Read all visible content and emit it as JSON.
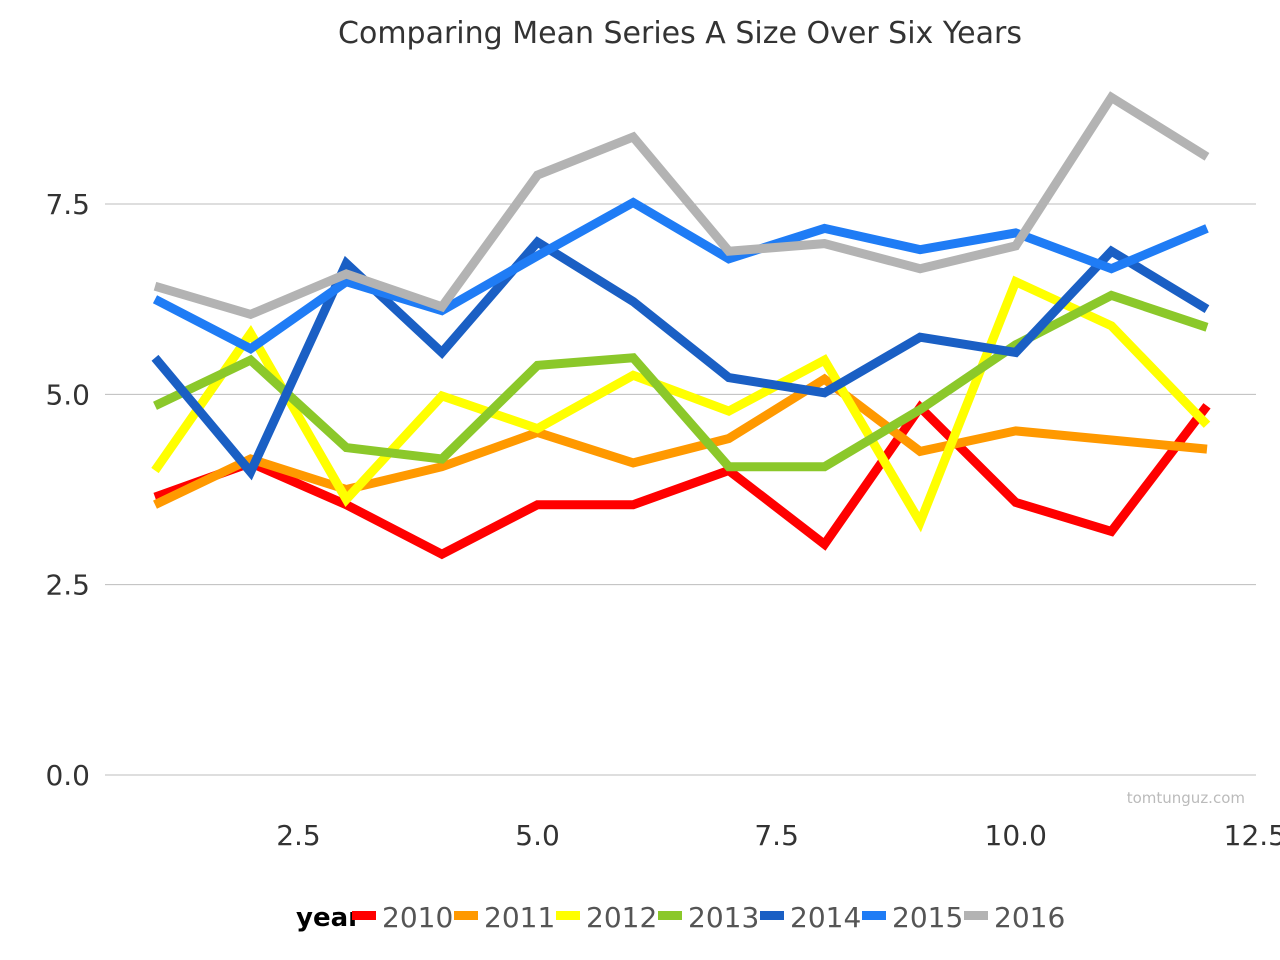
{
  "watermark": "tomtunguz.com",
  "chart_data": {
    "type": "line",
    "title": "Comparing Mean Series A Size Over Six Years",
    "xlabel": "",
    "ylabel": "",
    "xlim": [
      0.5,
      12.5
    ],
    "ylim": [
      0,
      9
    ],
    "x_ticks": [
      2.5,
      5.0,
      7.5,
      10.0,
      12.5
    ],
    "y_ticks": [
      0.0,
      2.5,
      5.0,
      7.5
    ],
    "x_tick_labels": [
      "2.5",
      "5.0",
      "7.5",
      "10.0",
      "12.5"
    ],
    "y_tick_labels": [
      "0.0",
      "2.5",
      "5.0",
      "7.5"
    ],
    "grid": "horizontal",
    "legend_position": "bottom",
    "legend_title": "year",
    "x": [
      1,
      2,
      3,
      4,
      5,
      6,
      7,
      8,
      9,
      10,
      11,
      12
    ],
    "series": [
      {
        "name": "2010",
        "color": "#ff0000",
        "values": [
          3.65,
          4.1,
          3.55,
          2.9,
          3.55,
          3.55,
          4.0,
          3.03,
          4.83,
          3.58,
          3.2,
          4.85
        ]
      },
      {
        "name": "2011",
        "color": "#ff9900",
        "values": [
          3.55,
          4.15,
          3.75,
          4.05,
          4.5,
          4.1,
          4.42,
          5.2,
          4.25,
          4.52,
          4.4,
          4.28
        ]
      },
      {
        "name": "2012",
        "color": "#ffff00",
        "values": [
          4.0,
          5.8,
          3.62,
          4.98,
          4.55,
          5.25,
          4.78,
          5.45,
          3.32,
          6.48,
          5.9,
          4.6
        ]
      },
      {
        "name": "2013",
        "color": "#8bc82a",
        "values": [
          4.85,
          5.45,
          4.3,
          4.15,
          5.38,
          5.48,
          4.05,
          4.05,
          4.8,
          5.65,
          6.3,
          5.88
        ]
      },
      {
        "name": "2014",
        "color": "#1a5fc4",
        "values": [
          5.48,
          3.98,
          6.72,
          5.55,
          7.0,
          6.22,
          5.22,
          5.02,
          5.75,
          5.55,
          6.88,
          6.12
        ]
      },
      {
        "name": "2015",
        "color": "#1f7cf5",
        "values": [
          6.25,
          5.6,
          6.48,
          6.1,
          6.82,
          7.52,
          6.78,
          7.18,
          6.9,
          7.12,
          6.65,
          7.18
        ]
      },
      {
        "name": "2016",
        "color": "#b3b3b3",
        "values": [
          6.42,
          6.05,
          6.58,
          6.15,
          7.88,
          8.38,
          6.88,
          6.98,
          6.65,
          6.95,
          8.9,
          8.12
        ]
      }
    ]
  }
}
